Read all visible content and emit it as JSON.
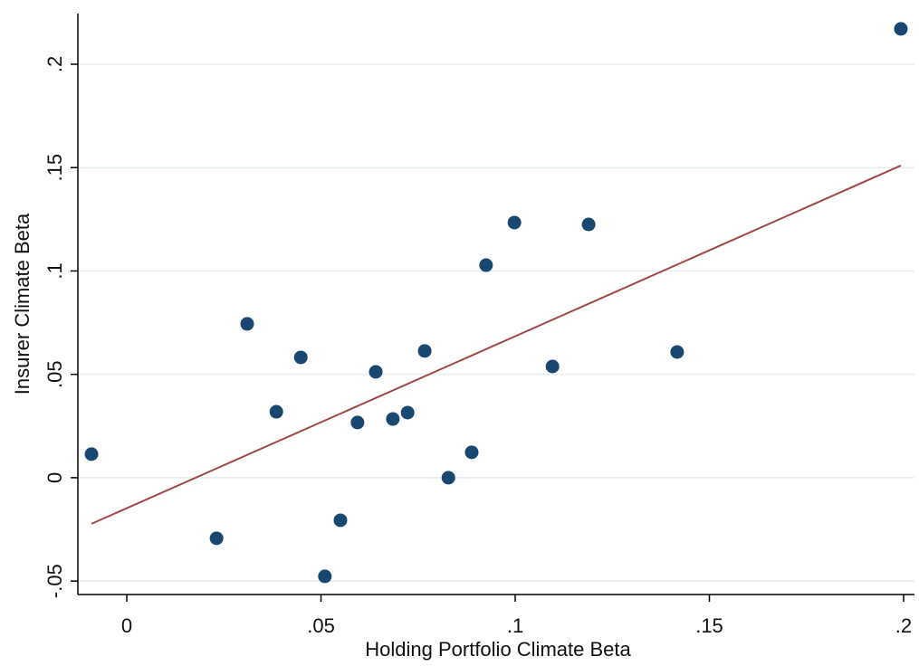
{
  "chart_data": {
    "type": "scatter",
    "x_label": "Holding Portfolio Climate Beta",
    "y_label": "Insurer Climate Beta",
    "xlim": [
      -0.0126,
      0.2028
    ],
    "ylim": [
      -0.0565,
      0.2245
    ],
    "xticks": [
      0,
      {
        "value": 0.05,
        "label": ".05"
      },
      {
        "value": 0.1,
        "label": ".1"
      },
      {
        "value": 0.15,
        "label": ".15"
      },
      {
        "value": 0.2,
        "label": ".2"
      }
    ],
    "yticks": [
      {
        "value": -0.05,
        "label": "-.05"
      },
      0,
      {
        "value": 0.05,
        "label": ".05"
      },
      {
        "value": 0.1,
        "label": ".1"
      },
      {
        "value": 0.15,
        "label": ".15"
      },
      {
        "value": 0.2,
        "label": ".2"
      }
    ],
    "grid": true,
    "points": {
      "color": "#1a476f",
      "x": [
        -0.0091,
        0.0231,
        0.031,
        0.0385,
        0.0448,
        0.051,
        0.055,
        0.0594,
        0.0641,
        0.0685,
        0.0723,
        0.0767,
        0.0828,
        0.0888,
        0.0925,
        0.0998,
        0.1096,
        0.1189,
        0.1417,
        0.1993
      ],
      "y": [
        0.0114,
        -0.0293,
        0.0744,
        0.0319,
        0.0582,
        -0.0477,
        -0.0206,
        0.0267,
        0.0512,
        0.0284,
        0.0315,
        0.0613,
        0.0,
        0.0123,
        0.1028,
        0.1234,
        0.0538,
        0.1225,
        0.0608,
        0.2171
      ]
    },
    "fit_line": {
      "color": "#a0474a",
      "x": [
        -0.0091,
        0.1993
      ],
      "y": [
        -0.0223,
        0.151
      ]
    }
  }
}
